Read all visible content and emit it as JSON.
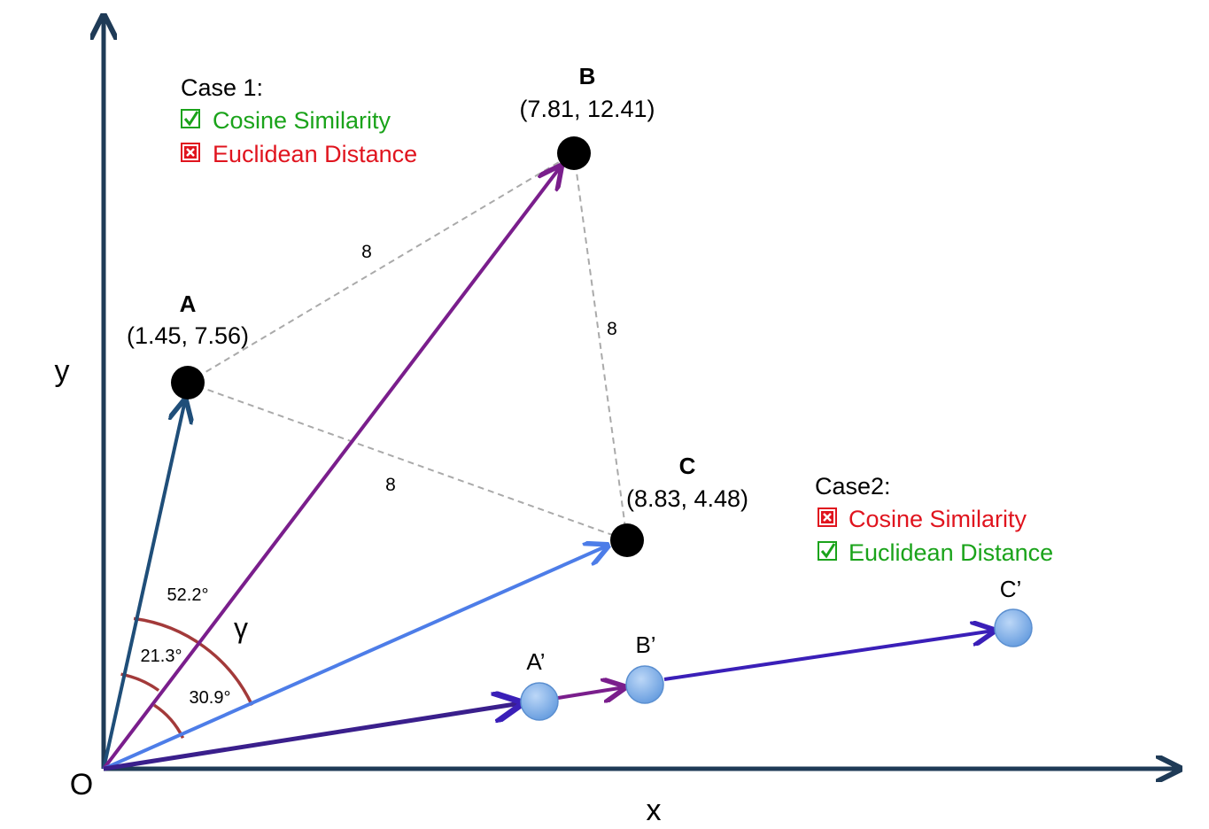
{
  "axes": {
    "x_label": "x",
    "y_label": "y",
    "origin_label": "O",
    "color": "#1f3b57"
  },
  "points": {
    "A": {
      "name": "A",
      "coord": "(1.45, 7.56)"
    },
    "B": {
      "name": "B",
      "coord": "(7.81, 12.41)"
    },
    "C": {
      "name": "C",
      "coord": "(8.83, 4.48)"
    }
  },
  "distances": {
    "ab": "8",
    "bc": "8",
    "ac": "8"
  },
  "angles": {
    "total": "52.2°",
    "oa_ob": "21.3°",
    "ob_oc": "30.9°",
    "gamma": "γ"
  },
  "case1": {
    "title": "Case 1:",
    "items": [
      {
        "icon": "checkbox-checked-icon",
        "label": "Cosine Similarity",
        "color": "#1aa31a"
      },
      {
        "icon": "checkbox-x-icon",
        "label": "Euclidean Distance",
        "color": "#e0141e"
      }
    ]
  },
  "case2": {
    "title": "Case2:",
    "items": [
      {
        "icon": "checkbox-x-icon",
        "label": "Cosine Similarity",
        "color": "#e0141e"
      },
      {
        "icon": "checkbox-checked-icon",
        "label": "Euclidean Distance",
        "color": "#1aa31a"
      }
    ]
  },
  "projected_points": {
    "a_prime": "A’",
    "b_prime": "B’",
    "c_prime": "C’"
  },
  "colors": {
    "vector_a": "#1f4e79",
    "vector_b": "#7a1e8c",
    "vector_c": "#4d7de8",
    "vector_prime": "#3a1fb8",
    "angle_arc": "#a33a3a",
    "dashed": "#aaaaaa",
    "point_fill": "#000000",
    "prime_point_fill": "#7fb2ec"
  }
}
